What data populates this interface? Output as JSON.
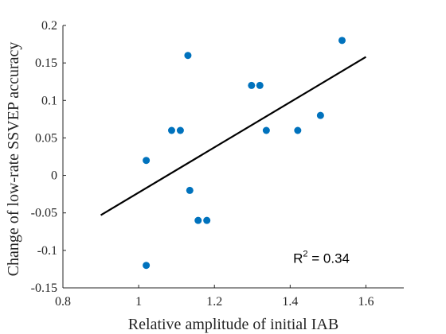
{
  "chart_data": {
    "type": "scatter",
    "title": "",
    "xlabel": "Relative amplitude of initial IAB",
    "ylabel": "Change of low-rate SSVEP accuracy",
    "xlim": [
      0.8,
      1.7
    ],
    "ylim": [
      -0.15,
      0.2
    ],
    "x_ticks": [
      "0.8",
      "1",
      "1.2",
      "1.4",
      "1.6"
    ],
    "x_tick_values": [
      0.8,
      1.0,
      1.2,
      1.4,
      1.6
    ],
    "y_ticks": [
      "-0.15",
      "-0.1",
      "-0.05",
      "0",
      "0.05",
      "0.1",
      "0.15",
      "0.2"
    ],
    "y_tick_values": [
      -0.15,
      -0.1,
      -0.05,
      0,
      0.05,
      0.1,
      0.15,
      0.2
    ],
    "grid": false,
    "point_color": "#0072BD",
    "line_color": "#000000",
    "points": [
      {
        "x": 1.02,
        "y": 0.02
      },
      {
        "x": 1.02,
        "y": -0.12
      },
      {
        "x": 1.087,
        "y": 0.06
      },
      {
        "x": 1.11,
        "y": 0.06
      },
      {
        "x": 1.13,
        "y": 0.16
      },
      {
        "x": 1.135,
        "y": -0.02
      },
      {
        "x": 1.157,
        "y": -0.06
      },
      {
        "x": 1.18,
        "y": -0.06
      },
      {
        "x": 1.298,
        "y": 0.12
      },
      {
        "x": 1.32,
        "y": 0.12
      },
      {
        "x": 1.337,
        "y": 0.06
      },
      {
        "x": 1.42,
        "y": 0.06
      },
      {
        "x": 1.48,
        "y": 0.08
      },
      {
        "x": 1.537,
        "y": 0.18
      }
    ],
    "fit_line": {
      "x1": 0.9,
      "y1": -0.053,
      "x2": 1.6,
      "y2": 0.158
    },
    "annotation": {
      "text": "R",
      "sup": "2",
      "rest": " = 0.34",
      "x": 1.45,
      "y": -0.11
    }
  }
}
